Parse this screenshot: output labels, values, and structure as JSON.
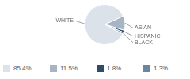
{
  "chart_data": {
    "type": "pie",
    "categories": [
      "WHITE",
      "ASIAN",
      "HISPANIC",
      "BLACK"
    ],
    "values": [
      85.4,
      11.5,
      1.8,
      1.3
    ],
    "value_labels": [
      "85.4%",
      "11.5%",
      "1.8%",
      "1.3%"
    ],
    "colors": [
      "#dbe2ea",
      "#a6b4c6",
      "#2e4d6d",
      "#6c86a2"
    ],
    "legend": "bottom"
  }
}
